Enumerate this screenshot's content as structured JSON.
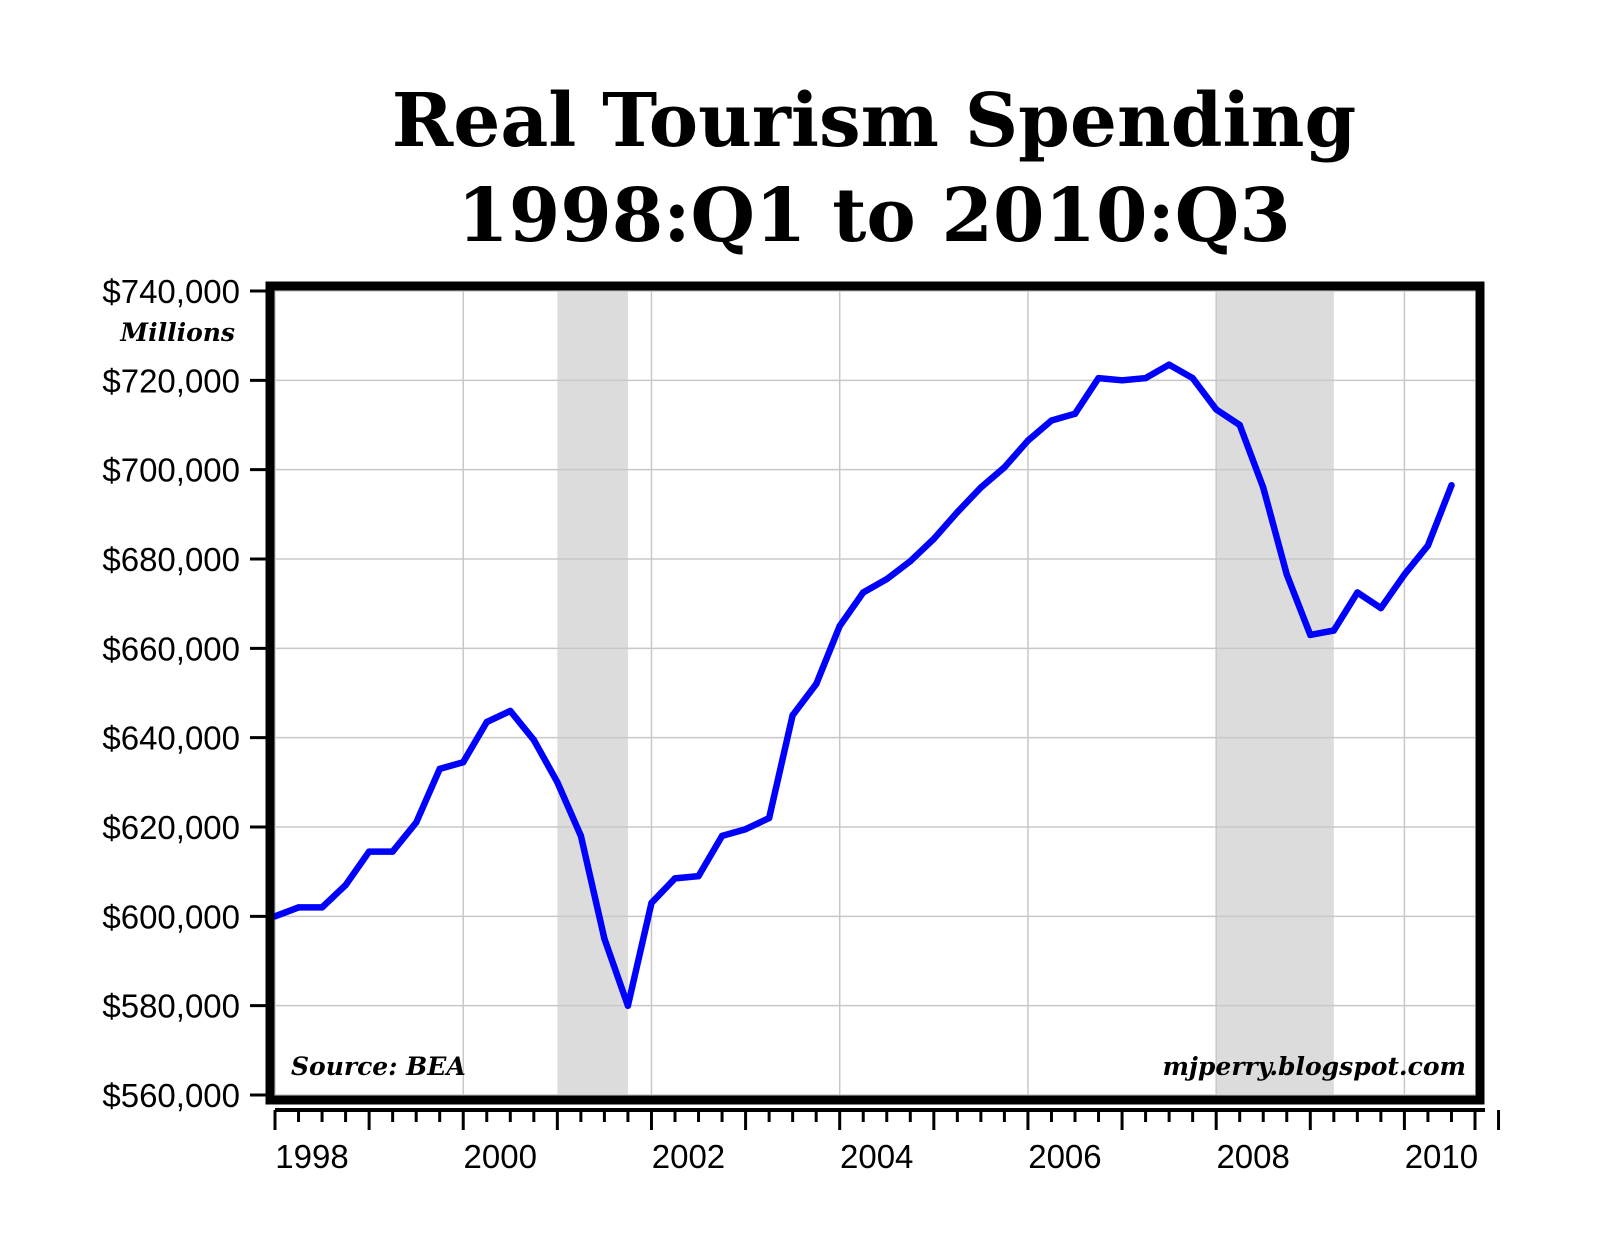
{
  "chart_data": {
    "type": "line",
    "title_lines": [
      "Real Tourism Spending",
      "1998:Q1 to 2010:Q3"
    ],
    "ylabel": "Millions",
    "ylim": [
      560000,
      740000
    ],
    "yticks": [
      560000,
      580000,
      600000,
      620000,
      640000,
      660000,
      680000,
      700000,
      720000,
      740000
    ],
    "ytick_labels": [
      "$560,000",
      "$580,000",
      "$600,000",
      "$620,000",
      "$640,000",
      "$660,000",
      "$680,000",
      "$700,000",
      "$720,000",
      "$740,000"
    ],
    "xlim": [
      1998.0,
      2010.75
    ],
    "xticks": [
      1998,
      2000,
      2002,
      2004,
      2006,
      2008,
      2010
    ],
    "xtick_labels": [
      "1998",
      "2000",
      "2002",
      "2004",
      "2006",
      "2008",
      "2010"
    ],
    "grid": true,
    "recessions": [
      {
        "start": 2001.0,
        "end": 2001.75
      },
      {
        "start": 2008.0,
        "end": 2009.25
      }
    ],
    "series": [
      {
        "color": "#0000ff",
        "x": [
          "1998:Q1",
          "1998:Q2",
          "1998:Q3",
          "1998:Q4",
          "1999:Q1",
          "1999:Q2",
          "1999:Q3",
          "1999:Q4",
          "2000:Q1",
          "2000:Q2",
          "2000:Q3",
          "2000:Q4",
          "2001:Q1",
          "2001:Q2",
          "2001:Q3",
          "2001:Q4",
          "2002:Q1",
          "2002:Q2",
          "2002:Q3",
          "2002:Q4",
          "2003:Q1",
          "2003:Q2",
          "2003:Q3",
          "2003:Q4",
          "2004:Q1",
          "2004:Q2",
          "2004:Q3",
          "2004:Q4",
          "2005:Q1",
          "2005:Q2",
          "2005:Q3",
          "2005:Q4",
          "2006:Q1",
          "2006:Q2",
          "2006:Q3",
          "2006:Q4",
          "2007:Q1",
          "2007:Q2",
          "2007:Q3",
          "2007:Q4",
          "2008:Q1",
          "2008:Q2",
          "2008:Q3",
          "2008:Q4",
          "2009:Q1",
          "2009:Q2",
          "2009:Q3",
          "2009:Q4",
          "2010:Q1",
          "2010:Q2",
          "2010:Q3"
        ],
        "values": [
          600000,
          602000,
          602000,
          607000,
          614500,
          614500,
          621000,
          633000,
          634500,
          643500,
          646000,
          639500,
          630000,
          618000,
          595000,
          580000,
          603000,
          608500,
          609000,
          618000,
          619500,
          622000,
          645000,
          652000,
          665000,
          672500,
          675500,
          679500,
          684500,
          690500,
          696000,
          700500,
          706500,
          711000,
          712500,
          720500,
          720000,
          720500,
          723500,
          720500,
          713500,
          710000,
          696000,
          676500,
          663000,
          664000,
          672500,
          669000,
          676500,
          683000,
          696500
        ]
      }
    ],
    "annotations": {
      "source": "Source: BEA",
      "website": "mjperry.blogspot.com"
    }
  }
}
